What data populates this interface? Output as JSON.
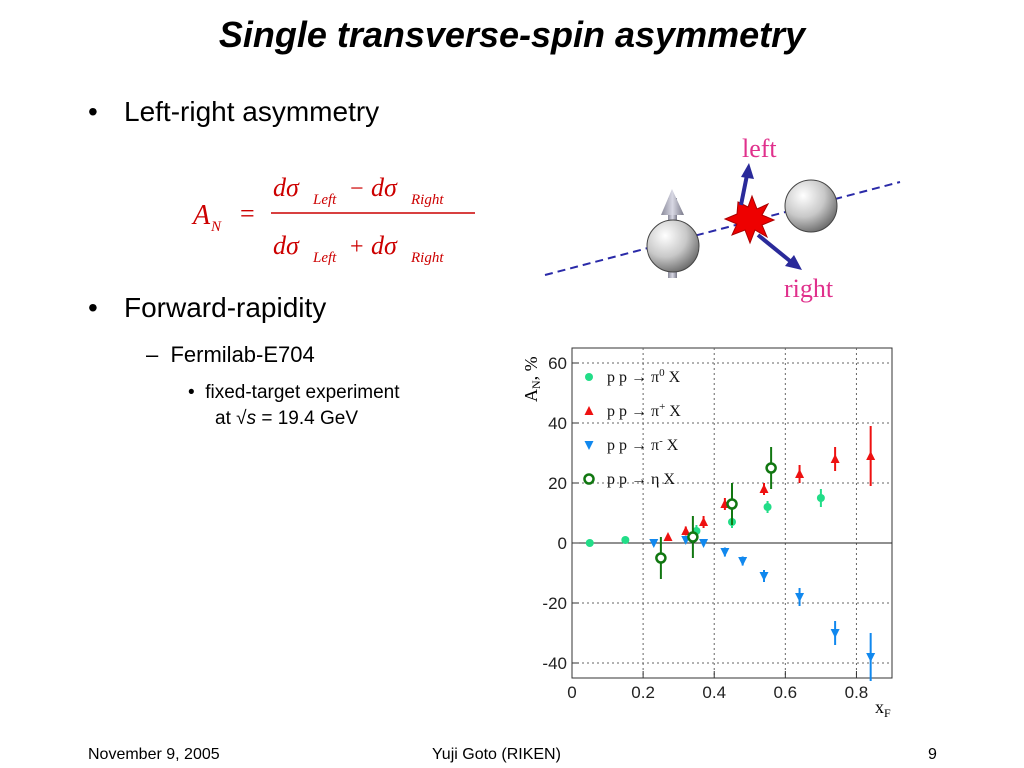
{
  "slide": {
    "title": "Single transverse-spin asymmetry",
    "bullet1": "Left-right asymmetry",
    "bullet2": "Forward-rapidity",
    "sub1": "Fermilab-E704",
    "subsub1_line1": "fixed-target experiment",
    "subsub1_line2_prefix": "at ",
    "subsub1_sqrt": "√",
    "subsub1_s": "s",
    "subsub1_line2_suffix": " = 19.4 GeV"
  },
  "formula": {
    "lhs": "A",
    "lhs_sub": "N",
    "equals": "=",
    "num_d1": "dσ",
    "num_sub1": "Left",
    "num_op": "−",
    "num_d2": "dσ",
    "num_sub2": "Right",
    "den_d1": "dσ",
    "den_sub1": "Left",
    "den_op": "+",
    "den_d2": "dσ",
    "den_sub2": "Right"
  },
  "diagram": {
    "left_label": "left",
    "right_label": "right",
    "label_color": "#e0308c",
    "arrow_color": "#2a2a9a",
    "burst_color": "#ee0000"
  },
  "chart_data": {
    "type": "scatter",
    "ylabel": "A",
    "ylabel_sub": "N",
    "ylabel_unit": ", %",
    "xlabel": "x",
    "xlabel_sub": "F",
    "xlim": [
      0,
      0.9
    ],
    "ylim": [
      -45,
      65
    ],
    "xticks": [
      0,
      0.2,
      0.4,
      0.6,
      0.8
    ],
    "xtick_labels": [
      "0",
      "0.2",
      "0.4",
      "0.6",
      "0.8"
    ],
    "yticks": [
      -40,
      -20,
      0,
      20,
      40,
      60
    ],
    "ytick_labels": [
      "-40",
      "-20",
      "0",
      "20",
      "40",
      "60"
    ],
    "grid": true,
    "legend_position": "top-left",
    "series": [
      {
        "name": "p p → π⁰ X",
        "legend_pre": "p p → π",
        "legend_sup": "0",
        "legend_post": " X",
        "marker": "circle-filled",
        "color": "#22dd88",
        "points": [
          {
            "x": 0.05,
            "y": 0,
            "err": 1
          },
          {
            "x": 0.15,
            "y": 1,
            "err": 1
          },
          {
            "x": 0.35,
            "y": 4,
            "err": 2
          },
          {
            "x": 0.45,
            "y": 7,
            "err": 2
          },
          {
            "x": 0.55,
            "y": 12,
            "err": 2
          },
          {
            "x": 0.7,
            "y": 15,
            "err": 3
          }
        ]
      },
      {
        "name": "p p → π⁺ X",
        "legend_pre": "p p → π",
        "legend_sup": "+",
        "legend_post": " X",
        "marker": "triangle-up",
        "color": "#ee1111",
        "points": [
          {
            "x": 0.27,
            "y": 2,
            "err": 1
          },
          {
            "x": 0.32,
            "y": 4,
            "err": 1.5
          },
          {
            "x": 0.37,
            "y": 7,
            "err": 2
          },
          {
            "x": 0.43,
            "y": 13,
            "err": 2
          },
          {
            "x": 0.54,
            "y": 18,
            "err": 2
          },
          {
            "x": 0.64,
            "y": 23,
            "err": 3
          },
          {
            "x": 0.74,
            "y": 28,
            "err": 4
          },
          {
            "x": 0.84,
            "y": 29,
            "err": 10
          }
        ]
      },
      {
        "name": "p p → π⁻ X",
        "legend_pre": "p p → π",
        "legend_sup": "-",
        "legend_post": " X",
        "marker": "triangle-down",
        "color": "#1188ee",
        "points": [
          {
            "x": 0.23,
            "y": 0,
            "err": 1
          },
          {
            "x": 0.32,
            "y": 1,
            "err": 1
          },
          {
            "x": 0.37,
            "y": 0,
            "err": 1
          },
          {
            "x": 0.43,
            "y": -3,
            "err": 1.5
          },
          {
            "x": 0.48,
            "y": -6,
            "err": 1.5
          },
          {
            "x": 0.54,
            "y": -11,
            "err": 2
          },
          {
            "x": 0.64,
            "y": -18,
            "err": 3
          },
          {
            "x": 0.74,
            "y": -30,
            "err": 4
          },
          {
            "x": 0.84,
            "y": -38,
            "err": 8
          }
        ]
      },
      {
        "name": "p p → η X",
        "legend_pre": "p p → η",
        "legend_sup": "",
        "legend_post": " X",
        "marker": "circle-open",
        "color": "#117711",
        "points": [
          {
            "x": 0.25,
            "y": -5,
            "err": 7
          },
          {
            "x": 0.34,
            "y": 2,
            "err": 7
          },
          {
            "x": 0.45,
            "y": 13,
            "err": 7
          },
          {
            "x": 0.56,
            "y": 25,
            "err": 7
          }
        ]
      }
    ]
  },
  "footer": {
    "date": "November 9, 2005",
    "author": "Yuji Goto (RIKEN)",
    "page": "9"
  }
}
